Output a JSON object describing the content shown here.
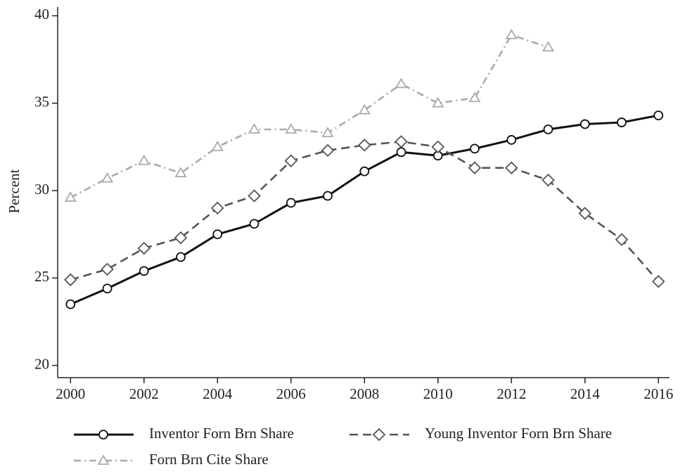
{
  "chart_data": {
    "type": "line",
    "y_label": "Percent",
    "x": [
      2000,
      2001,
      2002,
      2003,
      2004,
      2005,
      2006,
      2007,
      2008,
      2009,
      2010,
      2011,
      2012,
      2013,
      2014,
      2015,
      2016
    ],
    "series": [
      {
        "name": "Inventor Forn Brn Share",
        "color": "#111111",
        "marker": "circle",
        "dash": "solid",
        "values": [
          23.5,
          24.4,
          25.4,
          26.2,
          27.5,
          28.1,
          29.3,
          29.7,
          31.1,
          32.2,
          32.0,
          32.4,
          32.9,
          33.5,
          33.8,
          33.9,
          34.3
        ]
      },
      {
        "name": "Young Inventor Forn Brn Share",
        "color": "#555555",
        "marker": "diamond",
        "dash": "dash",
        "values": [
          24.9,
          25.5,
          26.7,
          27.3,
          29.0,
          29.7,
          31.7,
          32.3,
          32.6,
          32.8,
          32.5,
          31.3,
          31.3,
          30.6,
          28.7,
          27.2,
          24.8
        ]
      },
      {
        "name": "Forn Brn Cite Share",
        "color": "#aaaaaa",
        "marker": "triangle",
        "dash": "dashdot",
        "values": [
          29.6,
          30.7,
          31.7,
          31.0,
          32.5,
          33.5,
          33.5,
          33.3,
          34.6,
          36.1,
          35.0,
          35.3,
          38.9,
          38.2,
          null,
          null,
          null
        ]
      }
    ],
    "xlim": [
      1999.65,
      2016.3
    ],
    "ylim": [
      19.3,
      40.5
    ],
    "xticks": [
      2000,
      2002,
      2004,
      2006,
      2008,
      2010,
      2012,
      2014,
      2016
    ],
    "yticks": [
      20,
      25,
      30,
      35,
      40
    ],
    "grid": false,
    "legend": "bottom"
  }
}
